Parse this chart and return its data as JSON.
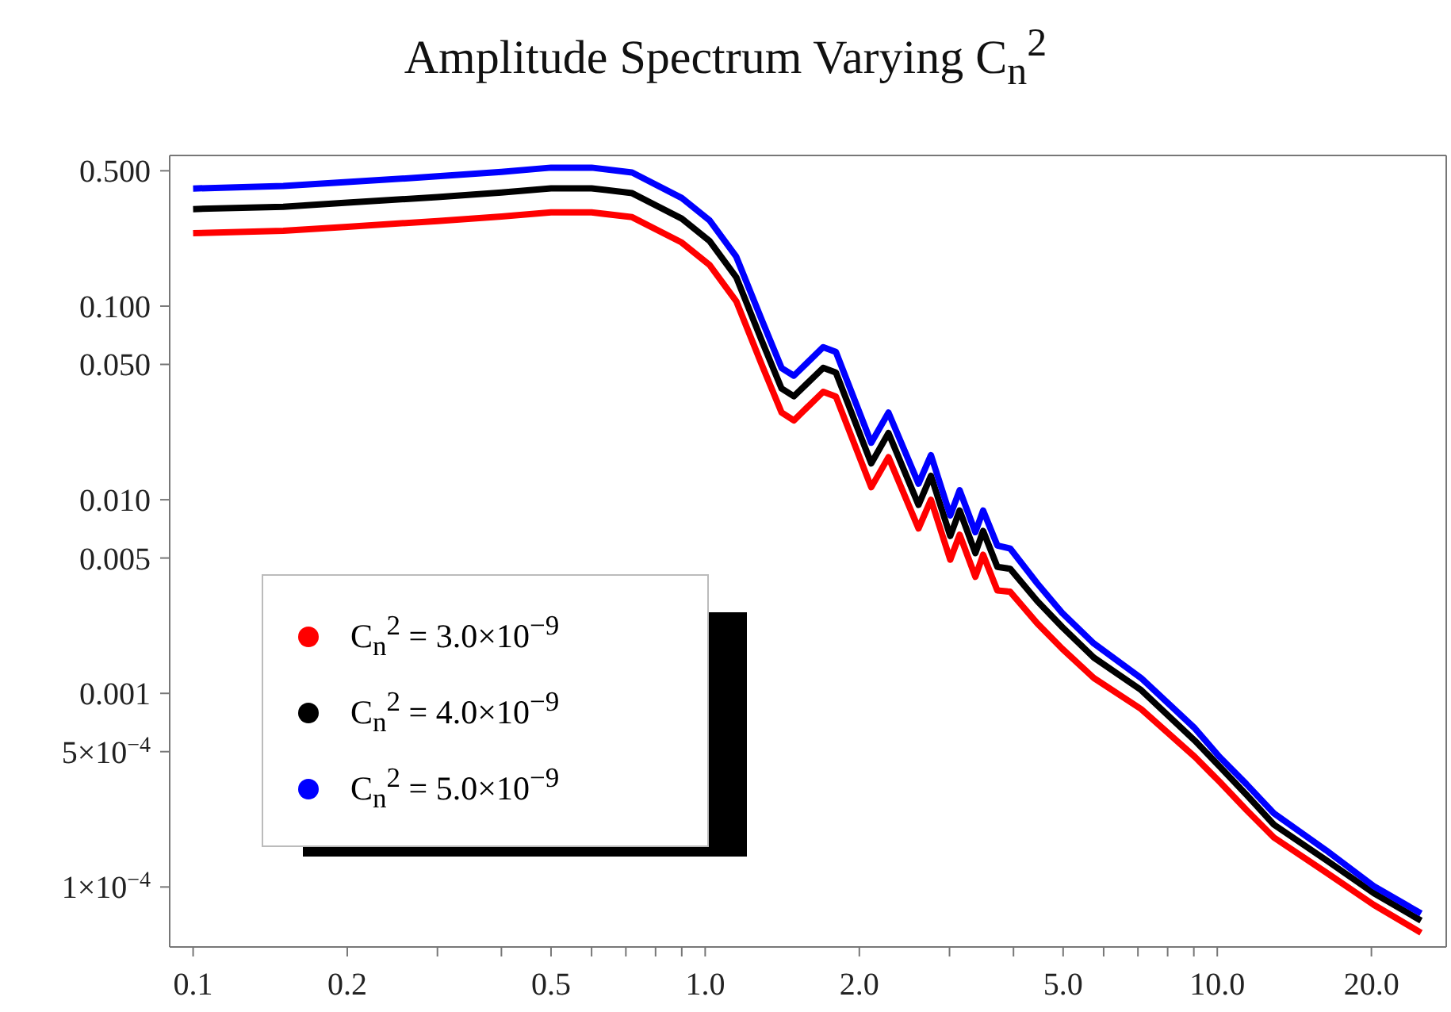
{
  "chart_data": {
    "type": "line",
    "title": "Amplitude Spectrum Varying C$_{n}$$^{2}$",
    "log": "xy",
    "grid": false,
    "legend": "bottom left",
    "marker": "none",
    "line_style": "solid",
    "xlim": [
      0.09,
      28
    ],
    "ylim": [
      4.9e-05,
      0.6
    ],
    "xticks": [
      {
        "value": 0.1,
        "label": "0.1"
      },
      {
        "value": 0.2,
        "label": "0.2"
      },
      {
        "value": 0.3,
        "label": null
      },
      {
        "value": 0.4,
        "label": null
      },
      {
        "value": 0.5,
        "label": "0.5"
      },
      {
        "value": 0.6,
        "label": null
      },
      {
        "value": 0.7,
        "label": null
      },
      {
        "value": 0.8,
        "label": null
      },
      {
        "value": 0.9,
        "label": null
      },
      {
        "value": 1,
        "label": "1.0"
      },
      {
        "value": 2,
        "label": "2.0"
      },
      {
        "value": 3,
        "label": null
      },
      {
        "value": 4,
        "label": null
      },
      {
        "value": 5,
        "label": "5.0"
      },
      {
        "value": 6,
        "label": null
      },
      {
        "value": 7,
        "label": null
      },
      {
        "value": 8,
        "label": null
      },
      {
        "value": 9,
        "label": null
      },
      {
        "value": 10,
        "label": "10.0"
      },
      {
        "value": 20,
        "label": "20.0"
      }
    ],
    "yticks": [
      {
        "value": 0.5,
        "label": "0.500"
      },
      {
        "value": 0.1,
        "label": "0.100"
      },
      {
        "value": 0.05,
        "label": "0.050"
      },
      {
        "value": 0.01,
        "label": "0.010"
      },
      {
        "value": 0.005,
        "label": "0.005"
      },
      {
        "value": 0.001,
        "label": "0.001"
      },
      {
        "value": 0.0005,
        "label": "5×10$^{−4}$"
      },
      {
        "value": 0.0001,
        "label": "1×10$^{−4}$"
      }
    ],
    "x": [
      0.1,
      0.15,
      0.2,
      0.3,
      0.4,
      0.5,
      0.6,
      0.72,
      0.9,
      1.02,
      1.15,
      1.29,
      1.41,
      1.49,
      1.7,
      1.8,
      2.11,
      2.28,
      2.61,
      2.76,
      3.01,
      3.14,
      3.37,
      3.49,
      3.72,
      3.94,
      4.45,
      4.98,
      5.74,
      7.1,
      9.04,
      10.1,
      11.4,
      12.9,
      16.3,
      20.2,
      25.0
    ],
    "series": [
      {
        "name": "C$_{n}$$^{2}$ = 3.0×10$^{−9}$",
        "color": "#ff0000",
        "values": [
          0.238,
          0.245,
          0.257,
          0.275,
          0.29,
          0.305,
          0.305,
          0.288,
          0.213,
          0.163,
          0.106,
          0.0498,
          0.0282,
          0.0257,
          0.0361,
          0.0341,
          0.0116,
          0.0166,
          0.0071,
          0.01,
          0.0049,
          0.0066,
          0.004,
          0.0052,
          0.0034,
          0.00335,
          0.0023,
          0.0017,
          0.0012,
          0.00083,
          0.00047,
          0.00035,
          0.00025,
          0.00018,
          0.000119,
          8.1e-05,
          5.8e-05
        ]
      },
      {
        "name": "C$_{n}$$^{2}$ = 4.0×10$^{−9}$",
        "color": "#000000",
        "values": [
          0.317,
          0.326,
          0.342,
          0.366,
          0.386,
          0.406,
          0.406,
          0.383,
          0.283,
          0.217,
          0.141,
          0.0662,
          0.0375,
          0.0342,
          0.048,
          0.0454,
          0.0154,
          0.0221,
          0.0094,
          0.0133,
          0.0065,
          0.0088,
          0.0053,
          0.0069,
          0.0045,
          0.0044,
          0.003,
          0.0022,
          0.00153,
          0.00104,
          0.00057,
          0.00042,
          0.0003,
          0.00021,
          0.000138,
          9.3e-05,
          6.7e-05
        ]
      },
      {
        "name": "C$_{n}$$^{2}$ = 5.0×10$^{−9}$",
        "color": "#0000ff",
        "values": [
          0.405,
          0.417,
          0.437,
          0.468,
          0.493,
          0.519,
          0.519,
          0.49,
          0.362,
          0.277,
          0.18,
          0.0847,
          0.0479,
          0.0437,
          0.0614,
          0.058,
          0.0197,
          0.0282,
          0.0121,
          0.017,
          0.0083,
          0.0112,
          0.0068,
          0.0088,
          0.0058,
          0.0056,
          0.0037,
          0.0026,
          0.00181,
          0.0012,
          0.00066,
          0.00047,
          0.00034,
          0.00024,
          0.000155,
          0.000101,
          7.3e-05
        ]
      }
    ]
  }
}
